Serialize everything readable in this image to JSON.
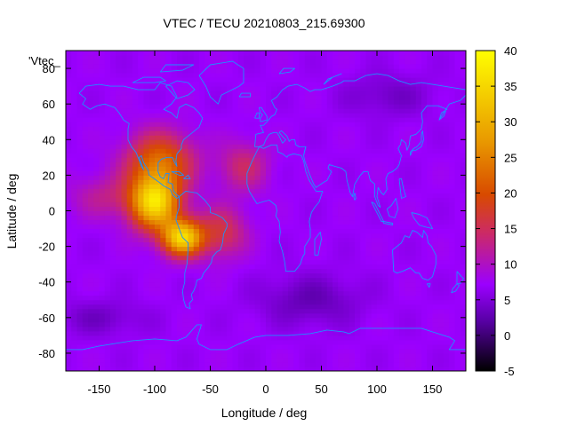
{
  "chart_data": {
    "type": "heatmap",
    "title": "VTEC / TECU 20210803_215.69300",
    "xlabel": "Longitude / deg",
    "ylabel": "Latitude / deg",
    "key_label": "'Vtec_",
    "xlim": [
      -180,
      180
    ],
    "ylim": [
      -90,
      90
    ],
    "x_ticks": [
      -150,
      -100,
      -50,
      0,
      50,
      100,
      150
    ],
    "y_ticks": [
      -80,
      -60,
      -40,
      -20,
      0,
      20,
      40,
      60,
      80
    ],
    "colorbar": {
      "range": [
        -5,
        40
      ],
      "ticks": [
        -5,
        0,
        5,
        10,
        15,
        20,
        25,
        30,
        35,
        40
      ],
      "palette": [
        "#000000",
        "#5a00a8",
        "#9b00ff",
        "#cc2a66",
        "#d84a00",
        "#e99a00",
        "#ffff00"
      ]
    },
    "grid_resolution_deg": {
      "lon": 5,
      "lat": 2.5
    },
    "background_value": 7,
    "features": [
      {
        "name": "equatorial-anomaly-americas",
        "lon": -100,
        "lat": 5,
        "peak_value": 35
      },
      {
        "name": "southern-crest-americas",
        "lon": -75,
        "lat": -15,
        "peak_value": 34
      },
      {
        "name": "northern-crest-north-america",
        "lon": -95,
        "lat": 28,
        "peak_value": 22
      },
      {
        "name": "south-atlantic-extension",
        "lon": -40,
        "lat": -12,
        "peak_value": 16
      },
      {
        "name": "atlantic-northern-extension",
        "lon": -20,
        "lat": 25,
        "peak_value": 14
      },
      {
        "name": "eastern-pacific-extension",
        "lon": -145,
        "lat": 8,
        "peak_value": 12
      },
      {
        "name": "low-southern-ocean",
        "lon": 40,
        "lat": -50,
        "peak_value": 3
      },
      {
        "name": "low-south-pacific",
        "lon": -150,
        "lat": -60,
        "peak_value": 4
      },
      {
        "name": "low-north-asia",
        "lon": 110,
        "lat": 65,
        "peak_value": 4
      }
    ],
    "coastline_color": "#1e90ff"
  }
}
